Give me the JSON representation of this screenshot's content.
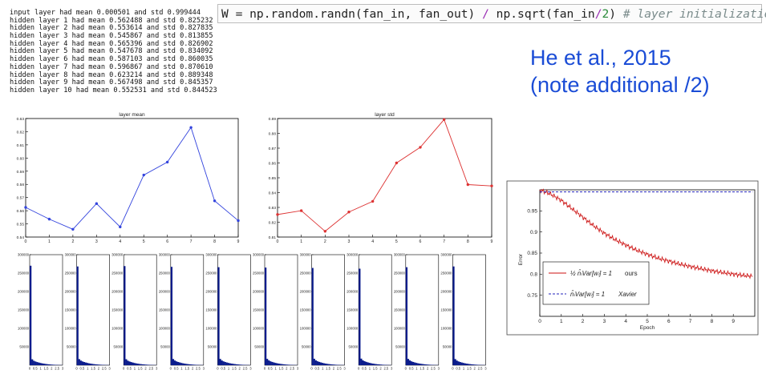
{
  "log": {
    "lines": [
      "input layer had mean 0.000501 and std 0.999444",
      "hidden layer 1 had mean 0.562488 and std 0.825232",
      "hidden layer 2 had mean 0.553614 and std 0.827835",
      "hidden layer 3 had mean 0.545867 and std 0.813855",
      "hidden layer 4 had mean 0.565396 and std 0.826902",
      "hidden layer 5 had mean 0.547678 and std 0.834092",
      "hidden layer 6 had mean 0.587103 and std 0.860035",
      "hidden layer 7 had mean 0.596867 and std 0.870610",
      "hidden layer 8 had mean 0.623214 and std 0.889348",
      "hidden layer 9 had mean 0.567498 and std 0.845357",
      "hidden layer 10 had mean 0.552531 and std 0.844523"
    ]
  },
  "code": {
    "lhs": "W = np.random.randn(fan_in, fan_out) ",
    "op1": "/",
    "mid": " np.sqrt(fan_in",
    "op2": "/",
    "num": "2",
    "close": ") ",
    "comment": "# layer initialization"
  },
  "citation": {
    "line1": "He et al., 2015",
    "line2": "(note additional /2)"
  },
  "chart_data": [
    {
      "type": "line",
      "title": "layer mean",
      "color": "#3344dd",
      "x": [
        0,
        1,
        2,
        3,
        4,
        5,
        6,
        7,
        8,
        9
      ],
      "y": [
        0.5625,
        0.5536,
        0.5459,
        0.5654,
        0.5477,
        0.5871,
        0.5969,
        0.6232,
        0.5675,
        0.5525
      ],
      "xticks": [
        "0",
        "1",
        "2",
        "3",
        "4",
        "5",
        "6",
        "7",
        "8",
        "9"
      ],
      "yticks": [
        "0.54",
        "0.55",
        "0.56",
        "0.57",
        "0.58",
        "0.59",
        "0.60",
        "0.61",
        "0.62",
        "0.63"
      ],
      "xlim": [
        0,
        9
      ],
      "ylim": [
        0.54,
        0.63
      ]
    },
    {
      "type": "line",
      "title": "layer std",
      "color": "#dd3333",
      "x": [
        0,
        1,
        2,
        3,
        4,
        5,
        6,
        7,
        8,
        9
      ],
      "y": [
        0.8252,
        0.8278,
        0.8139,
        0.8269,
        0.8341,
        0.86,
        0.8706,
        0.8893,
        0.8454,
        0.8445
      ],
      "xticks": [
        "0",
        "1",
        "2",
        "3",
        "4",
        "5",
        "6",
        "7",
        "8",
        "9"
      ],
      "yticks": [
        "0.81",
        "0.82",
        "0.83",
        "0.84",
        "0.85",
        "0.86",
        "0.87",
        "0.88",
        "0.89"
      ],
      "xlim": [
        0,
        9
      ],
      "ylim": [
        0.81,
        0.89
      ]
    },
    {
      "type": "bar",
      "title": "",
      "color": "#0b1c8c",
      "panels": 10,
      "xticks": [
        "0",
        "0.5",
        "1",
        "1.5",
        "2",
        "2.5",
        "3"
      ],
      "yticks": [
        "50000",
        "100000",
        "150000",
        "200000",
        "250000",
        "300000"
      ],
      "ylim": [
        0,
        300000
      ],
      "xlim": [
        0,
        3
      ],
      "histograms": [
        [
          270000,
          16000,
          12000,
          10000,
          8500,
          7200,
          6000,
          5000,
          4200,
          3500,
          2900,
          2400,
          2000,
          1600,
          1300,
          1000,
          800,
          600,
          450,
          300
        ],
        [
          268000,
          16500,
          12500,
          10200,
          8600,
          7300,
          6100,
          5000,
          4200,
          3500,
          2900,
          2400,
          2000,
          1600,
          1300,
          1000,
          800,
          600,
          450,
          300
        ],
        [
          269000,
          16200,
          12200,
          10100,
          8500,
          7200,
          6000,
          5000,
          4200,
          3500,
          2900,
          2400,
          2000,
          1600,
          1300,
          1000,
          800,
          600,
          450,
          300
        ],
        [
          267000,
          16800,
          12700,
          10300,
          8700,
          7400,
          6100,
          5100,
          4200,
          3500,
          2900,
          2400,
          2000,
          1600,
          1300,
          1000,
          800,
          600,
          450,
          300
        ],
        [
          266000,
          17000,
          12800,
          10400,
          8800,
          7400,
          6200,
          5100,
          4300,
          3600,
          3000,
          2400,
          2000,
          1600,
          1300,
          1000,
          800,
          600,
          450,
          300
        ],
        [
          265000,
          17200,
          13000,
          10500,
          8900,
          7500,
          6200,
          5200,
          4300,
          3600,
          3000,
          2500,
          2000,
          1600,
          1300,
          1000,
          800,
          600,
          450,
          300
        ],
        [
          264000,
          17500,
          13100,
          10600,
          9000,
          7600,
          6300,
          5200,
          4300,
          3600,
          3000,
          2500,
          2000,
          1700,
          1300,
          1000,
          800,
          600,
          450,
          300
        ],
        [
          262000,
          17800,
          13300,
          10800,
          9100,
          7700,
          6400,
          5300,
          4400,
          3700,
          3000,
          2500,
          2100,
          1700,
          1300,
          1000,
          800,
          600,
          450,
          300
        ],
        [
          266000,
          17100,
          12900,
          10400,
          8800,
          7400,
          6200,
          5100,
          4300,
          3600,
          3000,
          2400,
          2000,
          1600,
          1300,
          1000,
          800,
          600,
          450,
          300
        ],
        [
          268000,
          16600,
          12500,
          10200,
          8600,
          7300,
          6100,
          5000,
          4200,
          3500,
          2900,
          2400,
          2000,
          1600,
          1300,
          1000,
          800,
          600,
          450,
          300
        ]
      ]
    },
    {
      "type": "line",
      "title": "",
      "xlabel": "Epoch",
      "ylabel": "Error",
      "xticks": [
        "0",
        "1",
        "2",
        "3",
        "4",
        "5",
        "6",
        "7",
        "8",
        "9"
      ],
      "yticks": [
        "0.75",
        "0.8",
        "0.85",
        "0.9",
        "0.95"
      ],
      "xlim": [
        0,
        10
      ],
      "ylim": [
        0.7,
        1.0
      ],
      "series": [
        {
          "name": "ours",
          "legend_math": "½ n̂ₗVar[wₗ] = 1",
          "color": "#cc1111",
          "style": "solid",
          "x": [
            0,
            0.5,
            1,
            1.5,
            2,
            2.5,
            3,
            3.5,
            4,
            4.5,
            5,
            5.5,
            6,
            6.5,
            7,
            7.5,
            8,
            8.5,
            9,
            9.5,
            9.9
          ],
          "y": [
            1.0,
            0.99,
            0.975,
            0.955,
            0.935,
            0.915,
            0.897,
            0.882,
            0.869,
            0.857,
            0.847,
            0.838,
            0.831,
            0.824,
            0.818,
            0.813,
            0.808,
            0.804,
            0.8,
            0.797,
            0.795
          ]
        },
        {
          "name": "Xavier",
          "legend_math": "n̂ₗVar[wₗ] = 1",
          "color": "#2222bb",
          "style": "dashed",
          "x": [
            0,
            9.9
          ],
          "y": [
            0.995,
            0.995
          ]
        }
      ]
    }
  ]
}
